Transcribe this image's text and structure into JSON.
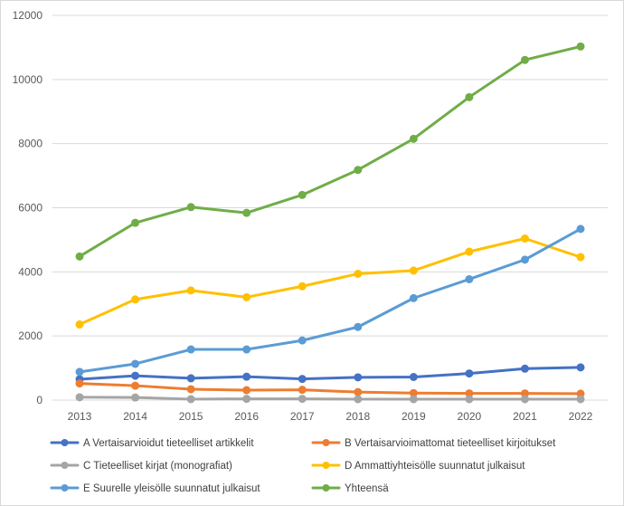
{
  "chart_data": {
    "type": "line",
    "title": "",
    "xlabel": "",
    "ylabel": "",
    "x": [
      "2013",
      "2014",
      "2015",
      "2016",
      "2017",
      "2018",
      "2019",
      "2020",
      "2021",
      "2022"
    ],
    "ylim": [
      0,
      12000
    ],
    "yticks": [
      "0",
      "2000",
      "4000",
      "6000",
      "8000",
      "10000",
      "12000"
    ],
    "grid": "horizontal",
    "legend_position": "bottom",
    "series": [
      {
        "name": "A Vertaisarvioidut tieteelliset artikkelit",
        "color": "#4472c4",
        "values": [
          650,
          760,
          680,
          730,
          660,
          710,
          720,
          830,
          980,
          1020
        ]
      },
      {
        "name": "B Vertaisarvioimattomat tieteelliset kirjoitukset",
        "color": "#ed7d31",
        "values": [
          520,
          450,
          340,
          310,
          320,
          250,
          220,
          210,
          210,
          200
        ]
      },
      {
        "name": "C Tieteelliset kirjat (monografiat)",
        "color": "#a5a5a5",
        "values": [
          90,
          80,
          30,
          40,
          40,
          30,
          30,
          30,
          30,
          30
        ]
      },
      {
        "name": "D Ammattiyhteisölle suunnatut julkaisut",
        "color": "#ffc000",
        "values": [
          2360,
          3140,
          3420,
          3210,
          3550,
          3940,
          4040,
          4630,
          5040,
          4460
        ]
      },
      {
        "name": "E Suurelle yleisölle suunnatut julkaisut",
        "color": "#5b9bd5",
        "values": [
          880,
          1130,
          1580,
          1580,
          1860,
          2280,
          3180,
          3770,
          4380,
          5340
        ]
      },
      {
        "name": "Yhteensä",
        "color": "#70ad47",
        "values": [
          4480,
          5530,
          6020,
          5840,
          6400,
          7180,
          8150,
          9450,
          10610,
          11030
        ]
      }
    ]
  }
}
